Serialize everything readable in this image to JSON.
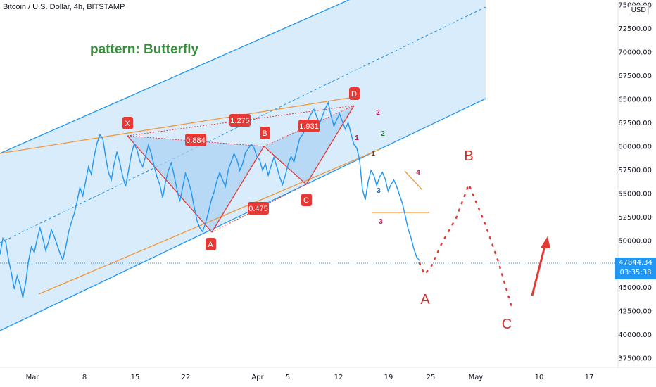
{
  "header": {
    "symbol_title": "Bitcoin / U.S. Dollar, 4h, BITSTAMP",
    "currency_button": "USD"
  },
  "price_tag": {
    "price": "47844.34",
    "countdown": "03:35:38"
  },
  "annotations": {
    "pattern_title": "pattern: Butterfly",
    "ratio_labels": [
      "1.275",
      "0.884",
      "1.931",
      "0.475"
    ],
    "point_labels": [
      "X",
      "A",
      "B",
      "C",
      "D"
    ],
    "wave_labels_small": [
      "1",
      "2",
      "3",
      "4",
      "1",
      "2",
      "3"
    ],
    "projection_labels": [
      "A",
      "B",
      "C"
    ]
  },
  "colors": {
    "price_line": "#2196f3",
    "channel_fill": "#cfe8fb",
    "channel_line": "#2196f3",
    "harmonic_fill": "#b3d8f5",
    "harmonic_line": "#e53935",
    "trend_line_orange": "#f2973a",
    "pattern_title": "#388e3c",
    "label_red": "#e53935"
  },
  "chart_data": {
    "type": "line",
    "title": "Bitcoin / U.S. Dollar, 4h, BITSTAMP",
    "xlabel": "",
    "ylabel": "",
    "ylim": [
      36500,
      75500
    ],
    "x_tick_labels": [
      "Mar",
      "8",
      "15",
      "22",
      "Apr",
      "5",
      "12",
      "19",
      "25",
      "May",
      "10",
      "17"
    ],
    "y_tick_labels": [
      "75000.00",
      "72500.00",
      "70000.00",
      "67500.00",
      "65000.00",
      "62500.00",
      "60000.00",
      "57500.00",
      "55000.00",
      "52500.00",
      "50000.00",
      "47500.00",
      "45000.00",
      "42500.00",
      "40000.00",
      "37500.00"
    ],
    "series": [
      {
        "values": [
          48500,
          50200,
          49800,
          47900,
          46500,
          44800,
          46200,
          45300,
          43900,
          45500,
          47800,
          49300,
          48700,
          50100,
          51300,
          50200,
          48900,
          49800,
          51100,
          50400,
          49500,
          48600,
          47900,
          49200,
          50800,
          51900,
          52800,
          54100,
          55600,
          54700,
          56200,
          57800,
          57000,
          58900,
          60300,
          61200,
          60800,
          58900,
          57200,
          56400,
          58100,
          59400,
          58200,
          56800,
          55700,
          57300,
          59100,
          60200,
          59600,
          58400,
          57800,
          58900,
          60100,
          59200,
          57900,
          56700,
          55900,
          54500,
          56200,
          57400,
          58200,
          56900,
          55400,
          54100,
          55600,
          57100,
          56300,
          55200,
          53600,
          52100,
          51300,
          50900,
          51800,
          52900,
          54200,
          55100,
          56300,
          57200,
          56400,
          55700,
          57500,
          58300,
          59200,
          58600,
          57400,
          58100,
          59300,
          59700,
          60200,
          59800,
          58900,
          58500,
          57400,
          58100,
          56900,
          57900,
          58800,
          57800,
          56700,
          55900,
          56900,
          58100,
          58900,
          58300,
          59600,
          60800,
          61200,
          61700,
          62800,
          63400,
          63900,
          63100,
          62400,
          63200,
          64000,
          64600,
          63200,
          62100,
          62800,
          63400,
          62600,
          61800,
          62500,
          61300,
          60200,
          59800,
          58500,
          55400,
          54300,
          56200,
          57400,
          56900,
          55800,
          56700,
          57200,
          56500,
          55200,
          55900,
          56400,
          55700,
          54800,
          53900,
          52600,
          51200,
          50300,
          49100,
          48200,
          47844
        ],
        "pattern_points": {
          "X": 61500,
          "A": 51000,
          "B": 60300,
          "C": 56000,
          "D": 64800
        },
        "ratios": {
          "XB": 0.884,
          "AC": 0.475,
          "BD": 1.931,
          "XD": 1.275
        }
      }
    ],
    "current_price": 47844.34,
    "projection": {
      "A": 46000,
      "B": 56500,
      "C": 42800
    },
    "grid": false,
    "legend": "none"
  }
}
